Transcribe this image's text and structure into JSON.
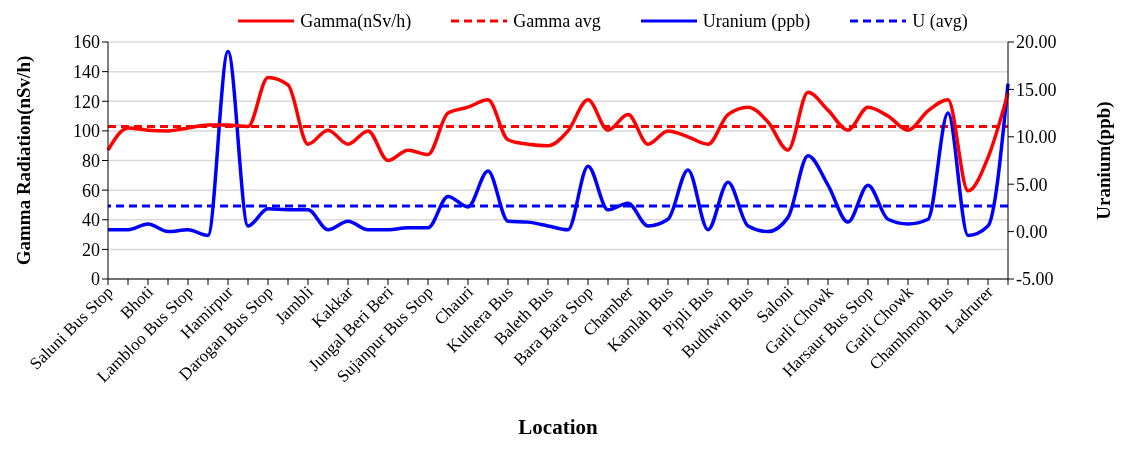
{
  "chart_data": {
    "type": "line",
    "xlabel": "Location",
    "ylabel": "Gamma Radiation(nSv/h)",
    "y2label": "Uranium(ppb)",
    "categories": [
      "Saluni Bus Stop",
      null,
      "Bhoti",
      null,
      "Lambloo Bus Stop",
      null,
      "Hamirpur",
      null,
      "Darogan Bus Stop",
      null,
      "Jambli",
      null,
      "Kakkar",
      null,
      "Jungal Beri Beri",
      null,
      "Sujanpur Bus Stop",
      null,
      "Chauri",
      null,
      "Kuthera Bus",
      null,
      "Baleth Bus",
      null,
      "Bara Bara Stop",
      null,
      "Chamber",
      null,
      "Kamlah Bus",
      null,
      "Pipli Bus",
      null,
      "Budhwin Bus",
      null,
      "Saloni",
      null,
      "Garli Chowk",
      null,
      "Harsaur Bus Stop",
      null,
      "Garli Chowk",
      null,
      "Chamhmoh Bus",
      null,
      "Ladrurer",
      null
    ],
    "series": [
      {
        "name": "Gamma(nSv/h)",
        "color": "#ff0000",
        "values": [
          87,
          102,
          100.5,
          100,
          102,
          104,
          104,
          103,
          136,
          131,
          91,
          100.5,
          91,
          100,
          80,
          87,
          84,
          112,
          116,
          121,
          94,
          91,
          90,
          100,
          121,
          100.5,
          111,
          91,
          100,
          96,
          91,
          111,
          116,
          106,
          87,
          126,
          114,
          100.5,
          116,
          110,
          100.5,
          113.5,
          121,
          59.5,
          82,
          125.5
        ]
      },
      {
        "name": "Uranium (ppb)",
        "color": "#0000ff",
        "axis": "y2",
        "values": [
          0.2,
          0.2,
          0.8,
          0,
          0.2,
          -0.4,
          19,
          0.6,
          2.4,
          2.3,
          2.3,
          0.2,
          1.1,
          0.2,
          0.2,
          0.4,
          0.4,
          3.7,
          2.6,
          6.4,
          1.1,
          1,
          0.6,
          0.2,
          6.9,
          2.3,
          3,
          0.6,
          1.3,
          6.5,
          0.2,
          5.2,
          0.6,
          0,
          1.5,
          8,
          4.9,
          1,
          4.9,
          1.3,
          0.8,
          1.3,
          12.5,
          -0.4,
          0.6,
          15.6
        ]
      }
    ],
    "ref_lines": [
      {
        "axis": "y",
        "value": 103,
        "label": "Gamma avg",
        "color": "#ff0000",
        "line_style": "dashed"
      },
      {
        "axis": "y2",
        "value": 2.7,
        "label": "U (avg)",
        "color": "#0000ff",
        "line_style": "dashed"
      }
    ],
    "ylim": [
      0,
      160
    ],
    "yticks": [
      0,
      20,
      40,
      60,
      80,
      100,
      120,
      140,
      160
    ],
    "y2lim": [
      -5,
      20
    ],
    "y2ticks": [
      {
        "value": -5,
        "label": "-5.00"
      },
      {
        "value": 0,
        "label": "0.00"
      },
      {
        "value": 5,
        "label": "5.00"
      },
      {
        "value": 10,
        "label": "10.00"
      },
      {
        "value": 15,
        "label": "15.00"
      },
      {
        "value": 20,
        "label": "20.00"
      }
    ],
    "grid": "y",
    "legend": "top",
    "marker": "none",
    "line_style": "solid"
  }
}
